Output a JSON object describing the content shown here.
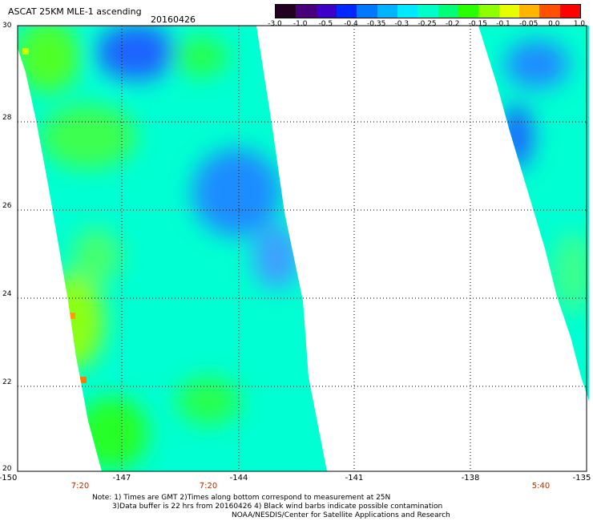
{
  "title": "ASCAT 25KM MLE-1 ascending",
  "date": "20160426",
  "colorbar": {
    "colors": [
      "#240020",
      "#48007a",
      "#3c00c8",
      "#0028ff",
      "#0078ff",
      "#00b4ff",
      "#00e8ff",
      "#00ffc8",
      "#00ff78",
      "#28ff00",
      "#8cff00",
      "#e6ff00",
      "#ffb400",
      "#ff5000",
      "#ff0000"
    ],
    "labels": [
      "-3.0",
      "-1.0",
      "-0.5",
      "-0.4",
      "-0.35",
      "-0.3",
      "-0.25",
      "-0.2",
      "-0.15",
      "-0.1",
      "-0.05",
      "0.0",
      "1.0"
    ]
  },
  "lat_labels": [
    "30",
    "28",
    "26",
    "24",
    "22",
    "20"
  ],
  "lon_labels": [
    "-150",
    "-147",
    "-144",
    "-141",
    "-138",
    "-135"
  ],
  "time_labels": [
    {
      "text": "7:20",
      "lon": -147.5
    },
    {
      "text": "7:20",
      "lon": -144.8
    },
    {
      "text": "5:40",
      "lon": -135.9
    }
  ],
  "notes": [
    "Note: 1) Times are GMT 2)Times along bottom correspond to measurement at 25N",
    "3)Data buffer is 22 hrs from 20160426 4) Black wind barbs indicate possible contamination",
    "NOAA/NESDIS/Center for Satellite Applications and Research"
  ],
  "colors": {
    "swath_base": "#00ffd2",
    "green": "#28ff28",
    "blue": "#1e78ff",
    "yellow": "#c8ff00",
    "orange": "#ff7800",
    "time_label": "#b03000"
  }
}
